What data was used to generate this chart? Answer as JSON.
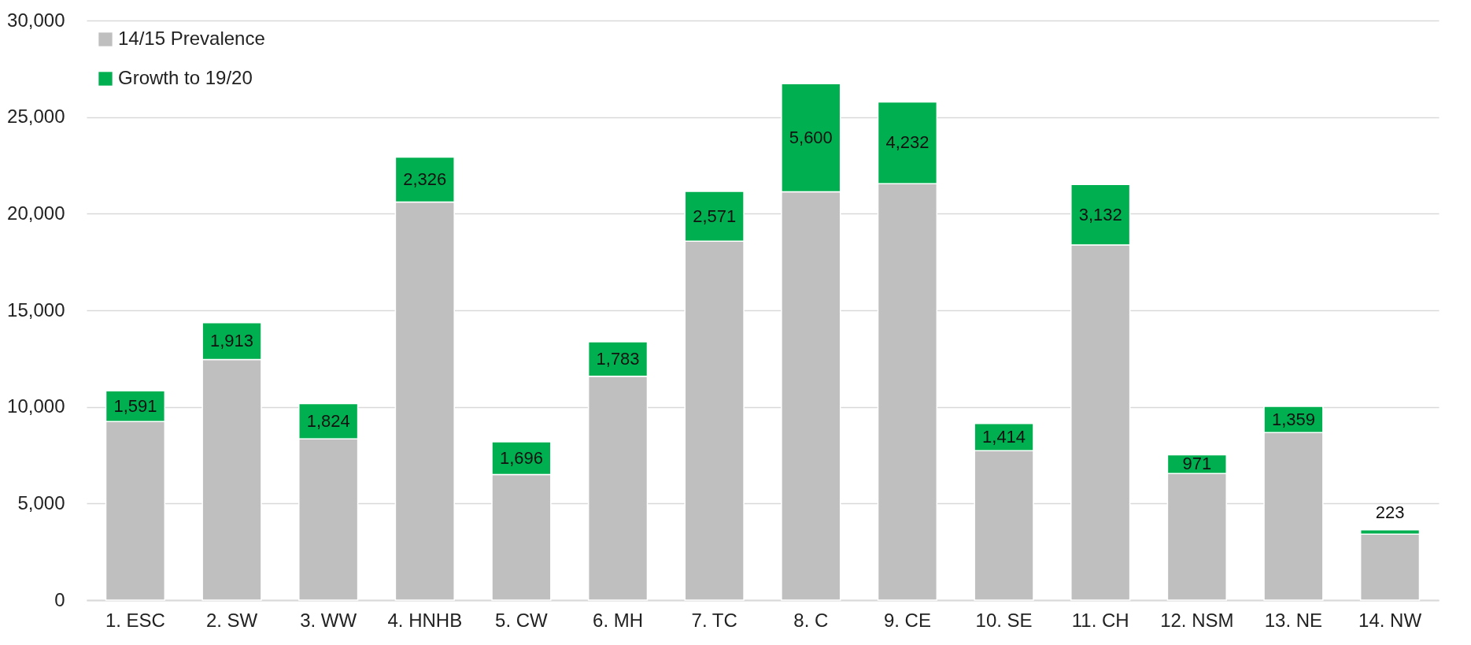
{
  "chart_data": {
    "type": "bar",
    "stacked": true,
    "categories": [
      "1. ESC",
      "2. SW",
      "3. WW",
      "4. HNHB",
      "5. CW",
      "6. MH",
      "7. TC",
      "8. C",
      "9. CE",
      "10. SE",
      "11. CH",
      "12. NSM",
      "13. NE",
      "14. NW"
    ],
    "series": [
      {
        "name": "14/15 Prevalence",
        "color": "#bfbfbf",
        "values": [
          9240,
          12450,
          8350,
          20600,
          6500,
          11590,
          18580,
          21130,
          21550,
          7730,
          18380,
          6550,
          8670,
          3410
        ]
      },
      {
        "name": "Growth to 19/20",
        "color": "#00b050",
        "values": [
          1591,
          1913,
          1824,
          2326,
          1696,
          1783,
          2571,
          5600,
          4232,
          1414,
          3132,
          971,
          1359,
          223
        ],
        "value_labels": [
          "1,591",
          "1,913",
          "1,824",
          "2,326",
          "1,696",
          "1,783",
          "2,571",
          "5,600",
          "4,232",
          "1,414",
          "3,132",
          "971",
          "1,359",
          "223"
        ]
      }
    ],
    "ylim": [
      0,
      30000
    ],
    "yticks": [
      0,
      {
        "value": 5000,
        "label": "5,000"
      },
      {
        "value": 10000,
        "label": "10,000"
      },
      {
        "value": 15000,
        "label": "15,000"
      },
      {
        "value": 20000,
        "label": "20,000"
      },
      {
        "value": 25000,
        "label": "25,000"
      },
      {
        "value": 30000,
        "label": "30,000"
      }
    ],
    "grid": "y",
    "legend": "top left"
  }
}
